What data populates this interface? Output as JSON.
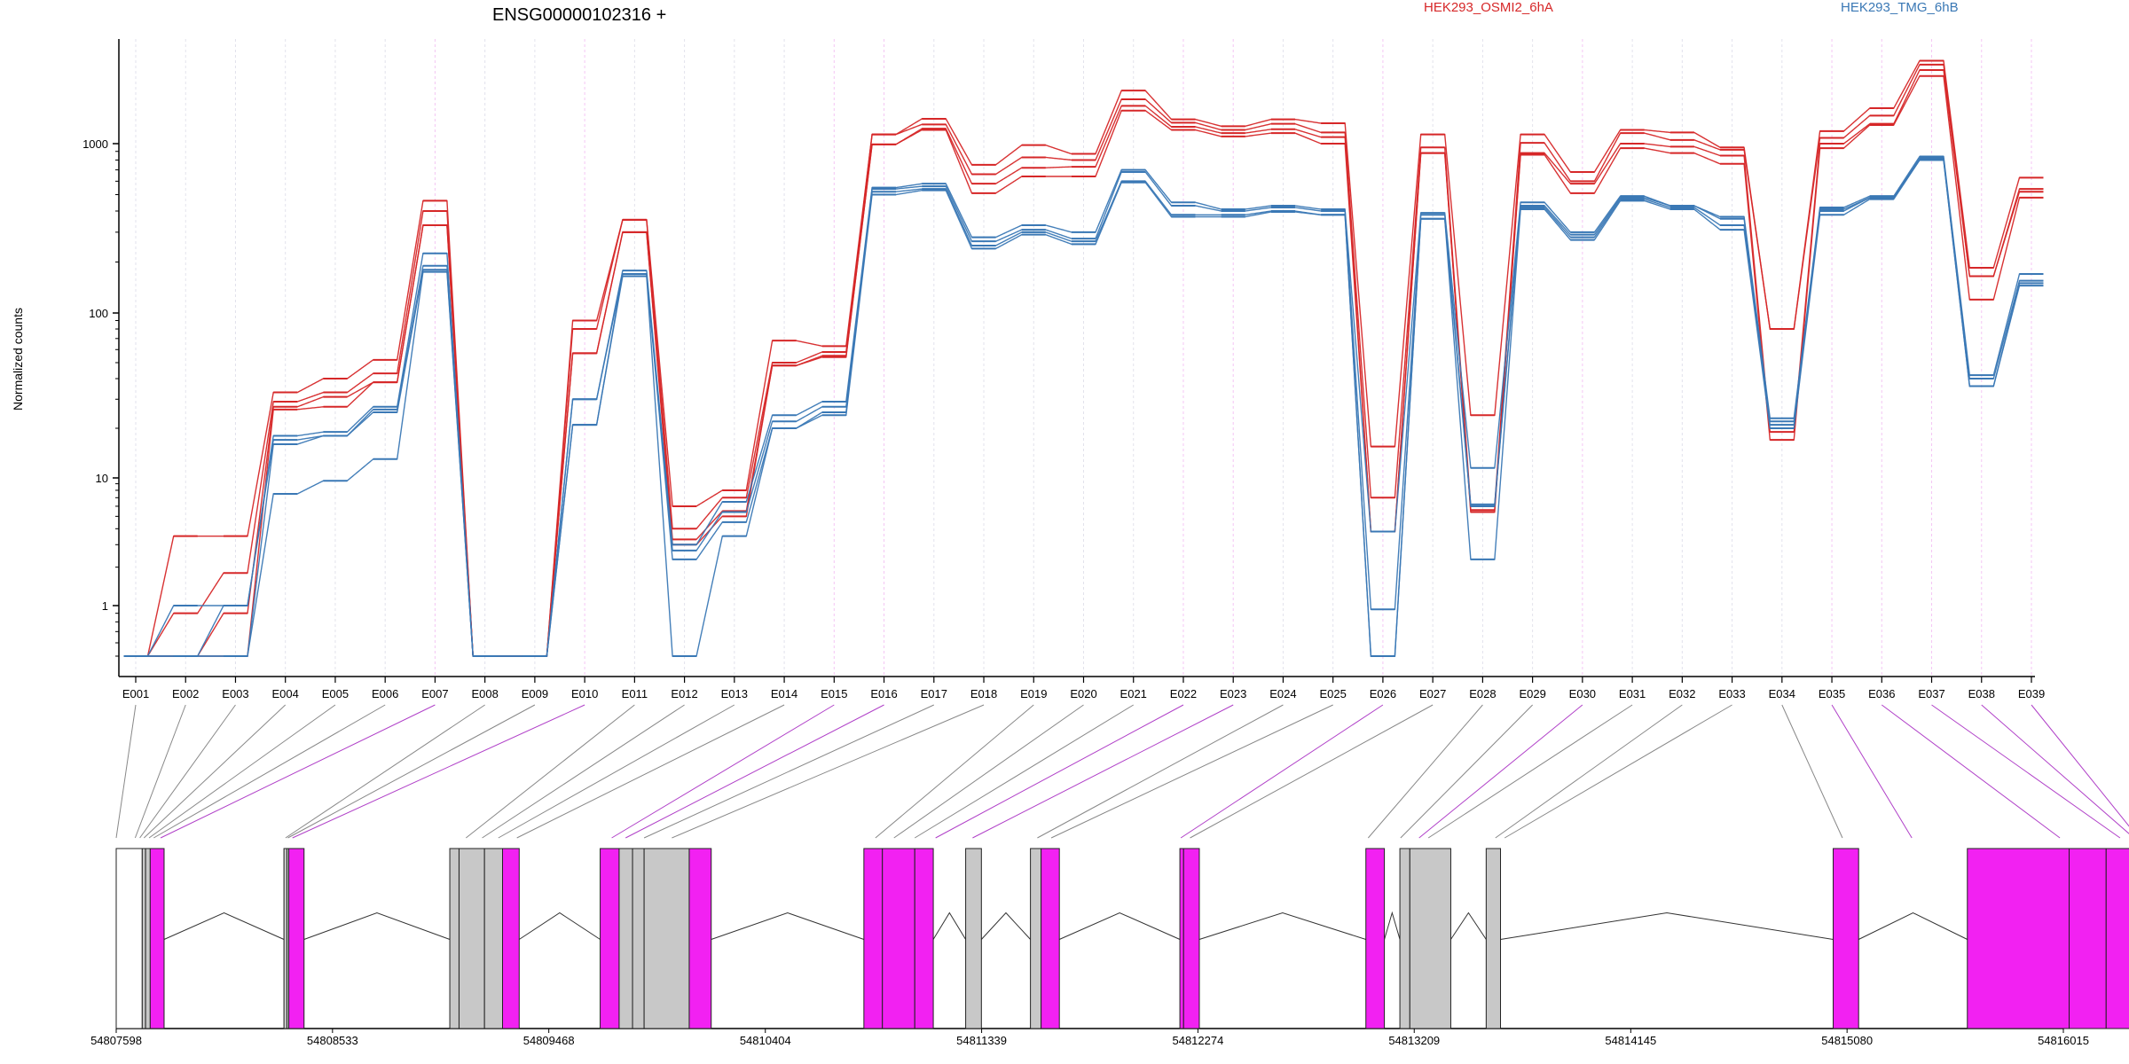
{
  "chart_data": {
    "type": "line",
    "title": "ENSG00000102316 +",
    "ylabel": "Normalized counts",
    "xlabel": "",
    "yscale": "log",
    "ylim": [
      0.5,
      4000
    ],
    "y_ticks": [
      1,
      10,
      100,
      1000
    ],
    "y_tick_labels": [
      "1",
      "10",
      "100",
      "1000"
    ],
    "grid": "vertical dotted lines per exon",
    "legend": "top, above plot",
    "categories": [
      "E001",
      "E002",
      "E003",
      "E004",
      "E005",
      "E006",
      "E007",
      "E008",
      "E009",
      "E010",
      "E011",
      "E012",
      "E013",
      "E014",
      "E015",
      "E016",
      "E017",
      "E018",
      "E019",
      "E020",
      "E021",
      "E022",
      "E023",
      "E024",
      "E025",
      "E026",
      "E027",
      "E028",
      "E029",
      "E030",
      "E031",
      "E032",
      "E033",
      "E034",
      "E035",
      "E036",
      "E037",
      "E038",
      "E039"
    ],
    "series": [
      {
        "name": "HEK293_OSMI2_6hA",
        "group": "red",
        "values": [
          0.5,
          3.5,
          3.5,
          33,
          40,
          52,
          460,
          0.5,
          0.5,
          90,
          355,
          6,
          8,
          68,
          63,
          1130,
          1390,
          750,
          980,
          870,
          2020,
          1380,
          1260,
          1380,
          1310,
          15.5,
          1130,
          24,
          1130,
          680,
          1200,
          1160,
          950,
          80,
          1180,
          1600,
          3000,
          185,
          630
        ]
      },
      {
        "name": "",
        "group": "red",
        "values": [
          0.5,
          0.9,
          1.8,
          29,
          33,
          43,
          400,
          0.5,
          0.5,
          80,
          355,
          4,
          7,
          50,
          58,
          1130,
          1290,
          660,
          830,
          800,
          1800,
          1320,
          1200,
          1300,
          1160,
          7,
          950,
          6,
          1010,
          600,
          1150,
          1050,
          920,
          80,
          1080,
          1450,
          2850,
          165,
          540
        ]
      },
      {
        "name": "",
        "group": "red",
        "values": [
          0.5,
          0.5,
          0.9,
          27,
          31,
          38,
          330,
          0.5,
          0.5,
          57,
          300,
          3.3,
          5.5,
          48,
          55,
          990,
          1220,
          580,
          720,
          730,
          1650,
          1250,
          1150,
          1210,
          1090,
          3.8,
          880,
          5.6,
          880,
          580,
          1000,
          960,
          850,
          19,
          1000,
          1300,
          2650,
          165,
          520
        ]
      },
      {
        "name": "",
        "group": "red",
        "values": [
          0.5,
          0.5,
          0.5,
          26,
          27,
          38,
          330,
          0.5,
          0.5,
          57,
          300,
          3,
          5,
          48,
          54,
          990,
          1200,
          510,
          640,
          640,
          1550,
          1200,
          1100,
          1150,
          1000,
          3.8,
          880,
          5.4,
          860,
          510,
          940,
          880,
          760,
          17,
          940,
          1280,
          2450,
          120,
          480
        ]
      },
      {
        "name": "",
        "group": "blue",
        "values": [
          0.5,
          1,
          1,
          18,
          19,
          27,
          225,
          0.5,
          0.5,
          30,
          178,
          3,
          6.5,
          24,
          29,
          550,
          580,
          280,
          330,
          300,
          700,
          450,
          410,
          430,
          410,
          3.8,
          390,
          11.5,
          450,
          300,
          490,
          430,
          370,
          23,
          420,
          490,
          840,
          42,
          170
        ]
      },
      {
        "name": "",
        "group": "blue",
        "values": [
          0.5,
          0.5,
          1,
          17,
          18,
          26,
          190,
          0.5,
          0.5,
          30,
          170,
          2.7,
          5.4,
          22,
          27,
          540,
          560,
          265,
          310,
          275,
          680,
          430,
          400,
          420,
          400,
          0.95,
          380,
          6.2,
          430,
          290,
          480,
          430,
          360,
          22,
          410,
          480,
          820,
          40,
          155
        ]
      },
      {
        "name": "HEK293_TMG_6hB",
        "group": "blue",
        "values": [
          0.5,
          0.5,
          0.5,
          16,
          18,
          25,
          180,
          0.5,
          0.5,
          21,
          170,
          2.3,
          4.5,
          20,
          25,
          520,
          540,
          250,
          300,
          265,
          600,
          380,
          380,
          400,
          380,
          0.5,
          360,
          6,
          420,
          280,
          470,
          420,
          330,
          21,
          400,
          480,
          800,
          36,
          150
        ]
      },
      {
        "name": "",
        "group": "blue",
        "values": [
          0.5,
          0.5,
          0.5,
          7.5,
          9.5,
          13,
          175,
          0.5,
          0.5,
          21,
          165,
          0.5,
          3.5,
          20,
          24,
          500,
          530,
          240,
          290,
          255,
          590,
          370,
          370,
          395,
          380,
          0.5,
          360,
          2.3,
          410,
          270,
          460,
          410,
          310,
          20,
          380,
          470,
          800,
          36,
          145
        ]
      }
    ],
    "series_colors": {
      "red": "#D62728",
      "blue": "#3A78B5"
    },
    "exon_highlight_color": "#F221F2",
    "exon_plain_color": "#C8C8C8",
    "genome_axis_labels": [
      "54807598",
      "54808533",
      "54809468",
      "54810404",
      "54811339",
      "54812274",
      "54813209",
      "54814145",
      "54815080",
      "54816015"
    ],
    "genome_range": [
      54807598,
      54816015
    ],
    "exon_significant": [
      false,
      false,
      false,
      false,
      false,
      false,
      true,
      false,
      false,
      true,
      false,
      false,
      false,
      false,
      true,
      true,
      false,
      false,
      false,
      false,
      false,
      true,
      true,
      false,
      false,
      true,
      false,
      false,
      false,
      true,
      false,
      false,
      false,
      false,
      true,
      true,
      true,
      true,
      true
    ]
  }
}
